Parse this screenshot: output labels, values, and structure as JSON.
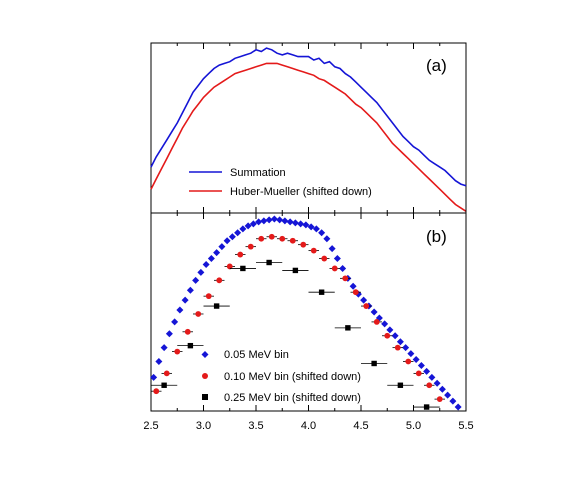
{
  "chart_data": [
    {
      "type": "line",
      "panel_label": "(a)",
      "xlim": [
        2.5,
        5.5
      ],
      "ylim": [
        0,
        1
      ],
      "legend_position": "bottom-left",
      "series": [
        {
          "name": "Summation",
          "color": "#1515d6",
          "x": [
            2.5,
            2.55,
            2.6,
            2.65,
            2.7,
            2.75,
            2.8,
            2.85,
            2.9,
            2.95,
            3.0,
            3.05,
            3.1,
            3.15,
            3.2,
            3.25,
            3.3,
            3.35,
            3.4,
            3.45,
            3.5,
            3.55,
            3.6,
            3.65,
            3.7,
            3.75,
            3.8,
            3.85,
            3.9,
            3.95,
            4.0,
            4.05,
            4.1,
            4.15,
            4.2,
            4.25,
            4.3,
            4.35,
            4.4,
            4.45,
            4.5,
            4.55,
            4.6,
            4.65,
            4.7,
            4.75,
            4.8,
            4.85,
            4.9,
            4.95,
            5.0,
            5.05,
            5.1,
            5.15,
            5.2,
            5.25,
            5.3,
            5.35,
            5.4,
            5.45,
            5.5
          ],
          "y": [
            0.27,
            0.33,
            0.38,
            0.43,
            0.48,
            0.53,
            0.59,
            0.65,
            0.71,
            0.75,
            0.79,
            0.82,
            0.85,
            0.87,
            0.88,
            0.89,
            0.91,
            0.92,
            0.93,
            0.94,
            0.96,
            0.95,
            0.97,
            0.96,
            0.94,
            0.93,
            0.94,
            0.93,
            0.92,
            0.92,
            0.92,
            0.9,
            0.91,
            0.88,
            0.89,
            0.86,
            0.85,
            0.82,
            0.8,
            0.77,
            0.74,
            0.71,
            0.68,
            0.65,
            0.61,
            0.57,
            0.53,
            0.49,
            0.45,
            0.42,
            0.39,
            0.37,
            0.34,
            0.31,
            0.29,
            0.27,
            0.25,
            0.22,
            0.19,
            0.17,
            0.16
          ]
        },
        {
          "name": "Huber-Mueller (shifted down)",
          "color": "#e41a1a",
          "x": [
            2.5,
            2.55,
            2.6,
            2.65,
            2.7,
            2.75,
            2.8,
            2.85,
            2.9,
            2.95,
            3.0,
            3.05,
            3.1,
            3.15,
            3.2,
            3.25,
            3.3,
            3.35,
            3.4,
            3.45,
            3.5,
            3.55,
            3.6,
            3.65,
            3.7,
            3.75,
            3.8,
            3.85,
            3.9,
            3.95,
            4.0,
            4.05,
            4.1,
            4.15,
            4.2,
            4.25,
            4.3,
            4.35,
            4.4,
            4.45,
            4.5,
            4.55,
            4.6,
            4.65,
            4.7,
            4.75,
            4.8,
            4.85,
            4.9,
            4.95,
            5.0,
            5.05,
            5.1,
            5.15,
            5.2,
            5.25,
            5.3,
            5.35,
            5.4,
            5.45,
            5.5
          ],
          "y": [
            0.14,
            0.2,
            0.26,
            0.32,
            0.38,
            0.44,
            0.5,
            0.55,
            0.6,
            0.64,
            0.68,
            0.71,
            0.74,
            0.76,
            0.78,
            0.8,
            0.82,
            0.83,
            0.84,
            0.85,
            0.86,
            0.87,
            0.88,
            0.88,
            0.88,
            0.87,
            0.86,
            0.85,
            0.84,
            0.83,
            0.82,
            0.81,
            0.79,
            0.78,
            0.76,
            0.74,
            0.72,
            0.7,
            0.67,
            0.64,
            0.62,
            0.59,
            0.56,
            0.53,
            0.49,
            0.45,
            0.41,
            0.38,
            0.35,
            0.32,
            0.29,
            0.26,
            0.23,
            0.2,
            0.17,
            0.14,
            0.11,
            0.08,
            0.05,
            0.03,
            0.01
          ]
        }
      ]
    },
    {
      "type": "scatter",
      "panel_label": "(b)",
      "xlim": [
        2.5,
        5.5
      ],
      "ylim": [
        0,
        1
      ],
      "x_ticks": [
        "2.5",
        "3.0",
        "3.5",
        "4.0",
        "4.5",
        "5.0",
        "5.5"
      ],
      "x_tick_values": [
        2.5,
        3.0,
        3.5,
        4.0,
        4.5,
        5.0,
        5.5
      ],
      "legend_position": "bottom-left",
      "series": [
        {
          "name": "0.05 MeV bin",
          "color": "#1515d6",
          "marker": "diamond",
          "x": [
            2.525,
            2.575,
            2.625,
            2.675,
            2.725,
            2.775,
            2.825,
            2.875,
            2.925,
            2.975,
            3.025,
            3.075,
            3.125,
            3.175,
            3.225,
            3.275,
            3.325,
            3.375,
            3.425,
            3.475,
            3.525,
            3.575,
            3.625,
            3.675,
            3.725,
            3.775,
            3.825,
            3.875,
            3.925,
            3.975,
            4.025,
            4.075,
            4.125,
            4.175,
            4.225,
            4.275,
            4.325,
            4.375,
            4.425,
            4.475,
            4.525,
            4.575,
            4.625,
            4.675,
            4.725,
            4.775,
            4.825,
            4.875,
            4.925,
            4.975,
            5.025,
            5.075,
            5.125,
            5.175,
            5.225,
            5.275,
            5.325,
            5.375,
            5.425
          ],
          "y": [
            0.17,
            0.25,
            0.32,
            0.39,
            0.45,
            0.51,
            0.56,
            0.61,
            0.66,
            0.7,
            0.74,
            0.77,
            0.8,
            0.83,
            0.86,
            0.88,
            0.9,
            0.92,
            0.935,
            0.945,
            0.955,
            0.96,
            0.965,
            0.97,
            0.965,
            0.96,
            0.955,
            0.95,
            0.945,
            0.94,
            0.93,
            0.92,
            0.9,
            0.87,
            0.82,
            0.77,
            0.72,
            0.67,
            0.63,
            0.59,
            0.56,
            0.53,
            0.5,
            0.47,
            0.44,
            0.41,
            0.38,
            0.35,
            0.32,
            0.29,
            0.26,
            0.23,
            0.2,
            0.17,
            0.14,
            0.11,
            0.08,
            0.05,
            0.02
          ]
        },
        {
          "name": "0.10 MeV bin (shifted down)",
          "color": "#e41a1a",
          "marker": "circle",
          "x": [
            2.55,
            2.65,
            2.75,
            2.85,
            2.95,
            3.05,
            3.15,
            3.25,
            3.35,
            3.45,
            3.55,
            3.65,
            3.75,
            3.85,
            3.95,
            4.05,
            4.15,
            4.25,
            4.35,
            4.45,
            4.55,
            4.65,
            4.75,
            4.85,
            4.95,
            5.05,
            5.15,
            5.25
          ],
          "y": [
            0.1,
            0.19,
            0.3,
            0.4,
            0.49,
            0.58,
            0.66,
            0.73,
            0.79,
            0.83,
            0.87,
            0.88,
            0.87,
            0.86,
            0.84,
            0.81,
            0.77,
            0.72,
            0.67,
            0.6,
            0.53,
            0.45,
            0.38,
            0.32,
            0.25,
            0.19,
            0.13,
            0.06
          ]
        },
        {
          "name": "0.25 MeV bin (shifted down)",
          "color": "#000000",
          "marker": "square",
          "x": [
            2.625,
            2.875,
            3.125,
            3.375,
            3.625,
            3.875,
            4.125,
            4.375,
            4.625,
            4.875,
            5.125
          ],
          "y": [
            0.13,
            0.33,
            0.53,
            0.72,
            0.75,
            0.71,
            0.6,
            0.42,
            0.24,
            0.13,
            0.02
          ]
        }
      ]
    }
  ]
}
